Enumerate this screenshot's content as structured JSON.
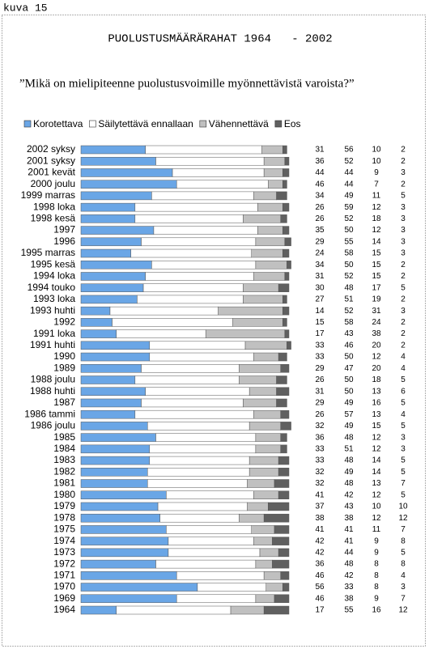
{
  "chart_data": {
    "type": "stacked-bar-horizontal",
    "caption": "kuva 15",
    "title": "PUOLUSTUSMÄÄRÄRAHAT 1964   - 2002",
    "subtitle": "”Mikä on mielipiteenne puolustusvoimille myönnettävistä varoista?”",
    "xlim": [
      0,
      100
    ],
    "categories": [
      "2002 syksy",
      "2001 syksy",
      "2001 kevät",
      "2000 joulu",
      "1999 marras",
      "1998 loka",
      "1998 kesä",
      "1997",
      "1996",
      "1995 marras",
      "1995 kesä",
      "1994 loka",
      "1994 touko",
      "1993 loka",
      "1993 huhti",
      "1992",
      "1991 loka",
      "1991 huhti",
      "1990",
      "1989",
      "1988 joulu",
      "1988 huhti",
      "1987",
      "1986 tammi",
      "1986 joulu",
      "1985",
      "1984",
      "1983",
      "1982",
      "1981",
      "1980",
      "1979",
      "1978",
      "1975",
      "1974",
      "1973",
      "1972",
      "1971",
      "1970",
      "1969",
      "1964"
    ],
    "series": [
      {
        "name": "Korotettava",
        "color": "#6aa6e6",
        "values": [
          31,
          36,
          44,
          46,
          34,
          26,
          26,
          35,
          29,
          24,
          34,
          31,
          30,
          27,
          14,
          15,
          17,
          33,
          33,
          29,
          26,
          31,
          29,
          26,
          32,
          36,
          33,
          33,
          32,
          32,
          41,
          37,
          38,
          41,
          42,
          42,
          36,
          46,
          56,
          46,
          17
        ]
      },
      {
        "name": "Säilytettävä ennallaan",
        "color": "#ffffff",
        "values": [
          56,
          52,
          44,
          44,
          49,
          59,
          52,
          50,
          55,
          58,
          50,
          52,
          48,
          51,
          52,
          58,
          43,
          46,
          50,
          47,
          50,
          50,
          49,
          57,
          49,
          48,
          51,
          48,
          49,
          48,
          42,
          43,
          38,
          41,
          41,
          44,
          48,
          42,
          33,
          38,
          55
        ]
      },
      {
        "name": "Vähennettävä",
        "color": "#c0c0c0",
        "values": [
          10,
          10,
          9,
          7,
          11,
          12,
          18,
          12,
          14,
          15,
          15,
          15,
          17,
          19,
          31,
          24,
          38,
          20,
          12,
          20,
          18,
          13,
          16,
          13,
          15,
          12,
          12,
          14,
          14,
          13,
          12,
          10,
          12,
          11,
          9,
          9,
          8,
          8,
          8,
          9,
          16
        ]
      },
      {
        "name": "Eos",
        "color": "#606060",
        "values": [
          2,
          2,
          3,
          2,
          5,
          3,
          3,
          3,
          3,
          3,
          2,
          2,
          5,
          2,
          3,
          2,
          2,
          2,
          4,
          4,
          5,
          6,
          5,
          4,
          5,
          3,
          3,
          5,
          5,
          7,
          5,
          10,
          12,
          7,
          8,
          5,
          8,
          4,
          3,
          7,
          12
        ]
      }
    ]
  }
}
